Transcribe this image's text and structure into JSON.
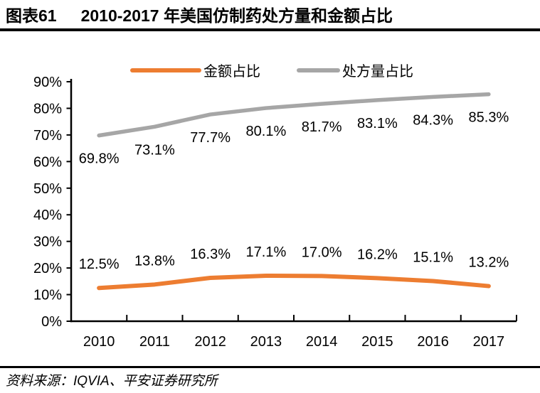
{
  "header": {
    "figure_label": "图表61",
    "title": "2010-2017 年美国仿制药处方量和金额占比"
  },
  "chart_data": {
    "type": "line",
    "title": "2010-2017 年美国仿制药处方量和金额占比",
    "categories": [
      "2010",
      "2011",
      "2012",
      "2013",
      "2014",
      "2015",
      "2016",
      "2017"
    ],
    "series": [
      {
        "name": "金额占比",
        "color": "#ED7D31",
        "values": [
          12.5,
          13.8,
          16.3,
          17.1,
          17.0,
          16.2,
          15.1,
          13.2
        ],
        "label_position": "above"
      },
      {
        "name": "处方量占比",
        "color": "#A6A6A6",
        "values": [
          69.8,
          73.1,
          77.7,
          80.1,
          81.7,
          83.1,
          84.3,
          85.3
        ],
        "label_position": "below"
      }
    ],
    "ylim": [
      0,
      90
    ],
    "ytick_step": 10,
    "ytick_suffix": "%",
    "grid": false,
    "legend_position": "top",
    "data_label_format": "one_decimal_percent",
    "axis_color": "#000000",
    "text_color": "#000000"
  },
  "footer": {
    "source": "资料来源：IQVIA、平安证券研究所"
  }
}
